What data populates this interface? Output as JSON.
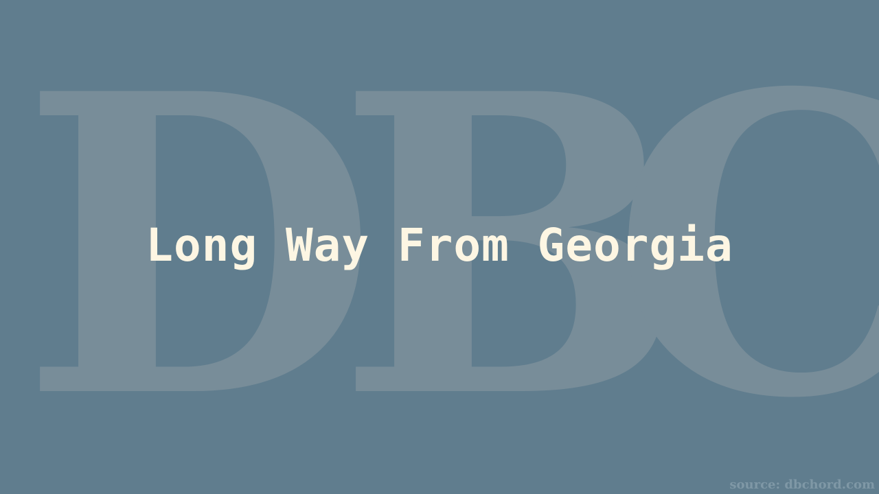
{
  "colors": {
    "background": "#607d8e",
    "watermark": "#788d99",
    "title": "#fdf6e3",
    "source": "#7f98a6"
  },
  "watermark": {
    "letters": [
      "D",
      "B",
      "C"
    ]
  },
  "title": "Long Way From Georgia",
  "source_label": "source: dbchord.com"
}
